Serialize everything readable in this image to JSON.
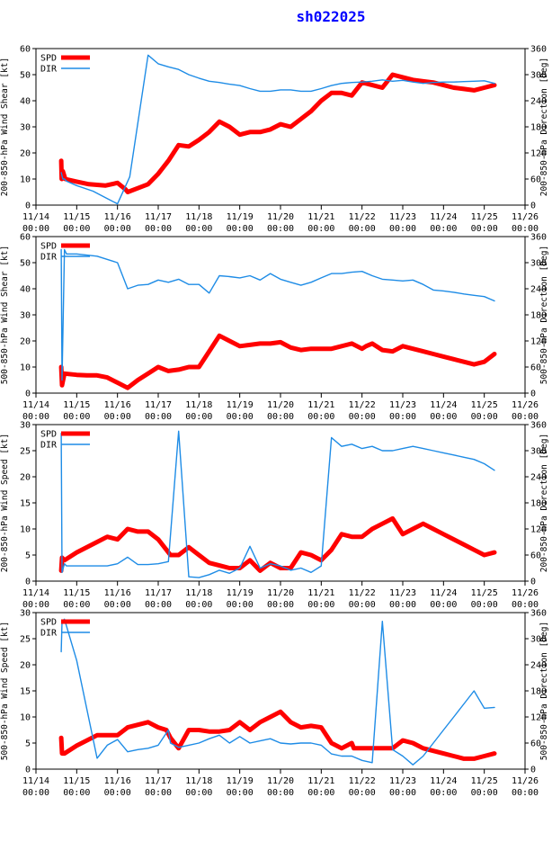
{
  "page": {
    "title": "sh022025"
  },
  "colors": {
    "spd": "#ff0000",
    "dir": "#1e8ce6",
    "axis": "#000000",
    "title": "#0000ff"
  },
  "chart_data": [
    {
      "type": "line",
      "ylabel": "200-850-hPa Wind Shear [kt]",
      "y2label": "200-850-hPa Direction [Deg]",
      "xlim": [
        0,
        12
      ],
      "ylim": [
        0,
        60
      ],
      "yticks": [
        0,
        10,
        20,
        30,
        40,
        50,
        60
      ],
      "y2lim": [
        0,
        360
      ],
      "y2ticks": [
        0,
        60,
        120,
        180,
        240,
        300,
        360
      ],
      "xtick_labels": [
        "11/14",
        "11/15",
        "11/16",
        "11/17",
        "11/18",
        "11/19",
        "11/20",
        "11/21",
        "11/22",
        "11/23",
        "11/24",
        "11/25",
        "11/26"
      ],
      "xtick_sublabel": "00:00",
      "legend": [
        "SPD",
        "DIR"
      ],
      "legend_position": "top-left",
      "series": [
        {
          "name": "SPD",
          "axis": "left",
          "x": [
            0.62,
            0.63,
            0.66,
            0.72,
            1.0,
            1.3,
            1.7,
            2.0,
            2.2,
            2.25,
            2.5,
            2.75,
            3.0,
            3.25,
            3.5,
            3.75,
            4.0,
            4.25,
            4.5,
            4.75,
            5.0,
            5.25,
            5.5,
            5.75,
            6.0,
            6.25,
            6.5,
            6.75,
            7.0,
            7.25,
            7.5,
            7.75,
            8.0,
            8.25,
            8.5,
            8.75,
            9.0,
            9.25,
            9.5,
            9.75,
            10.0,
            10.25,
            10.5,
            10.75,
            11.0,
            11.25
          ],
          "y": [
            17,
            10,
            13,
            10,
            9,
            8,
            7.5,
            8.5,
            6,
            5,
            6.5,
            8,
            12,
            17,
            23,
            22.5,
            25,
            28,
            32,
            30,
            27,
            28,
            28,
            29,
            31,
            30,
            33,
            36,
            40,
            43,
            43,
            42,
            47,
            46,
            45,
            50,
            49,
            48,
            47.5,
            47,
            46,
            45,
            44.5,
            44,
            45,
            46
          ]
        },
        {
          "name": "DIR",
          "axis": "right",
          "x": [
            0.62,
            0.66,
            0.7,
            0.75,
            1.0,
            1.4,
            1.75,
            2.0,
            2.3,
            2.75,
            3.0,
            3.25,
            3.5,
            3.75,
            4.0,
            4.25,
            4.5,
            4.75,
            5.0,
            5.25,
            5.5,
            5.75,
            6.0,
            6.25,
            6.5,
            6.75,
            7.0,
            7.25,
            7.5,
            7.75,
            8.0,
            8.25,
            8.5,
            8.75,
            9.0,
            9.25,
            9.5,
            9.75,
            10.0,
            10.25,
            10.5,
            10.75,
            11.0,
            11.25
          ],
          "y": [
            75,
            60,
            60,
            55,
            45,
            32,
            15,
            3,
            65,
            345,
            325,
            318,
            312,
            300,
            292,
            285,
            282,
            278,
            275,
            268,
            262,
            262,
            265,
            265,
            262,
            262,
            268,
            275,
            280,
            282,
            283,
            285,
            288,
            285,
            287,
            283,
            280,
            282,
            283,
            283,
            284,
            285,
            286,
            280
          ]
        }
      ]
    },
    {
      "type": "line",
      "ylabel": "500-850-hPa Wind Shear [kt]",
      "y2label": "500-850-hPa Direction [Deg]",
      "xlim": [
        0,
        12
      ],
      "ylim": [
        0,
        60
      ],
      "yticks": [
        0,
        10,
        20,
        30,
        40,
        50,
        60
      ],
      "y2lim": [
        0,
        360
      ],
      "y2ticks": [
        0,
        60,
        120,
        180,
        240,
        300,
        360
      ],
      "xtick_labels": [
        "11/14",
        "11/15",
        "11/16",
        "11/17",
        "11/18",
        "11/19",
        "11/20",
        "11/21",
        "11/22",
        "11/23",
        "11/24",
        "11/25",
        "11/26"
      ],
      "xtick_sublabel": "00:00",
      "legend": [
        "SPD",
        "DIR"
      ],
      "legend_position": "top-left",
      "series": [
        {
          "name": "SPD",
          "axis": "left",
          "x": [
            0.62,
            0.64,
            0.7,
            1.0,
            1.25,
            1.5,
            1.75,
            2.0,
            2.25,
            2.5,
            2.75,
            3.0,
            3.25,
            3.5,
            3.75,
            4.0,
            4.25,
            4.5,
            4.75,
            5.0,
            5.25,
            5.5,
            5.75,
            6.0,
            6.25,
            6.5,
            6.75,
            7.0,
            7.25,
            7.5,
            7.75,
            8.0,
            8.1,
            8.25,
            8.5,
            8.75,
            9.0,
            9.25,
            9.5,
            9.75,
            10.0,
            10.25,
            10.5,
            10.75,
            11.0,
            11.25
          ],
          "y": [
            10,
            3,
            7.5,
            7,
            6.8,
            6.8,
            6,
            4,
            2,
            5,
            7.5,
            10,
            8.5,
            9,
            10,
            10,
            16,
            22,
            20,
            18,
            18.5,
            19,
            19,
            19.5,
            17.5,
            16.5,
            17,
            17,
            17,
            18,
            19,
            17,
            18,
            19,
            16.5,
            16,
            18,
            17,
            16,
            15,
            14,
            13,
            12,
            11,
            12,
            15
          ]
        },
        {
          "name": "DIR",
          "axis": "right",
          "x": [
            0.62,
            0.64,
            0.7,
            0.75,
            1.0,
            1.5,
            2.0,
            2.25,
            2.5,
            2.75,
            3.0,
            3.25,
            3.5,
            3.75,
            4.0,
            4.25,
            4.5,
            4.75,
            5.0,
            5.25,
            5.5,
            5.75,
            6.0,
            6.25,
            6.5,
            6.75,
            7.0,
            7.25,
            7.5,
            7.75,
            8.0,
            8.25,
            8.5,
            8.75,
            9.0,
            9.25,
            9.5,
            9.75,
            10.0,
            10.25,
            10.5,
            10.75,
            11.0,
            11.25
          ],
          "y": [
            330,
            30,
            330,
            320,
            320,
            315,
            300,
            240,
            248,
            250,
            260,
            255,
            262,
            250,
            250,
            230,
            270,
            268,
            265,
            270,
            260,
            275,
            262,
            255,
            248,
            255,
            265,
            275,
            275,
            278,
            280,
            270,
            262,
            260,
            258,
            260,
            250,
            237,
            235,
            232,
            228,
            225,
            222,
            212
          ]
        }
      ]
    },
    {
      "type": "line",
      "ylabel": "200-850-hPa Wind Speed [kt]",
      "y2label": "200-850-hPa Direction [Deg]",
      "xlim": [
        0,
        12
      ],
      "ylim": [
        0,
        30
      ],
      "yticks": [
        0,
        5,
        10,
        15,
        20,
        25,
        30
      ],
      "y2lim": [
        0,
        360
      ],
      "y2ticks": [
        0,
        60,
        120,
        180,
        240,
        300,
        360
      ],
      "xtick_labels": [
        "11/14",
        "11/15",
        "11/16",
        "11/17",
        "11/18",
        "11/19",
        "11/20",
        "11/21",
        "11/22",
        "11/23",
        "11/24",
        "11/25",
        "11/26"
      ],
      "xtick_sublabel": "00:00",
      "legend": [
        "SPD",
        "DIR"
      ],
      "legend_position": "top-left",
      "series": [
        {
          "name": "SPD",
          "axis": "left",
          "x": [
            0.62,
            0.64,
            0.7,
            1.0,
            1.5,
            1.75,
            2.0,
            2.25,
            2.5,
            2.75,
            3.0,
            3.2,
            3.3,
            3.5,
            3.75,
            4.0,
            4.25,
            4.5,
            4.75,
            5.0,
            5.25,
            5.5,
            5.75,
            6.0,
            6.25,
            6.5,
            6.75,
            7.0,
            7.25,
            7.5,
            7.75,
            8.0,
            8.25,
            8.5,
            8.75,
            9.0,
            9.25,
            9.5,
            9.75,
            10.0,
            10.25,
            10.5,
            10.75,
            11.0,
            11.25
          ],
          "y": [
            2,
            4.5,
            4,
            5.5,
            7.5,
            8.5,
            8,
            10,
            9.5,
            9.5,
            8,
            6,
            5,
            5,
            6.5,
            5,
            3.5,
            3,
            2.5,
            2.5,
            4,
            2,
            3.5,
            2.5,
            2.5,
            5.5,
            5,
            4,
            6,
            9,
            8.5,
            8.5,
            10,
            11,
            12,
            9,
            10,
            11,
            10,
            9,
            8,
            7,
            6,
            5,
            5.5
          ]
        },
        {
          "name": "DIR",
          "axis": "right",
          "x": [
            0.62,
            0.64,
            0.7,
            0.75,
            1.0,
            1.25,
            1.5,
            1.75,
            2.0,
            2.25,
            2.5,
            2.75,
            3.0,
            3.25,
            3.5,
            3.75,
            4.0,
            4.25,
            4.5,
            4.75,
            5.0,
            5.25,
            5.5,
            5.75,
            6.0,
            6.25,
            6.5,
            6.75,
            7.0,
            7.25,
            7.5,
            7.75,
            8.0,
            8.25,
            8.5,
            8.75,
            9.0,
            9.25,
            9.5,
            9.75,
            10.0,
            10.25,
            10.5,
            10.75,
            11.0,
            11.25
          ],
          "y": [
            340,
            20,
            40,
            35,
            35,
            35,
            35,
            35,
            40,
            55,
            38,
            38,
            40,
            45,
            345,
            10,
            8,
            15,
            25,
            18,
            30,
            80,
            30,
            40,
            35,
            25,
            30,
            20,
            35,
            330,
            310,
            315,
            305,
            310,
            300,
            300,
            305,
            310,
            305,
            300,
            295,
            290,
            285,
            280,
            270,
            255
          ]
        }
      ]
    },
    {
      "type": "line",
      "ylabel": "500-850-hPa Wind Speed [kt]",
      "y2label": "500-850-hPa Direction [Deg]",
      "xlim": [
        0,
        12
      ],
      "ylim": [
        0,
        30
      ],
      "yticks": [
        0,
        5,
        10,
        15,
        20,
        25,
        30
      ],
      "y2lim": [
        0,
        360
      ],
      "y2ticks": [
        0,
        60,
        120,
        180,
        240,
        300,
        360
      ],
      "xtick_labels": [
        "11/14",
        "11/15",
        "11/16",
        "11/17",
        "11/18",
        "11/19",
        "11/20",
        "11/21",
        "11/22",
        "11/23",
        "11/24",
        "11/25",
        "11/26"
      ],
      "xtick_sublabel": "00:00",
      "legend": [
        "SPD",
        "DIR"
      ],
      "legend_position": "top-left",
      "series": [
        {
          "name": "SPD",
          "axis": "left",
          "x": [
            0.62,
            0.64,
            0.7,
            1.0,
            1.5,
            2.0,
            2.25,
            2.5,
            2.75,
            3.0,
            3.2,
            3.3,
            3.5,
            3.75,
            4.0,
            4.25,
            4.5,
            4.75,
            5.0,
            5.25,
            5.5,
            5.75,
            6.0,
            6.25,
            6.5,
            6.75,
            7.0,
            7.25,
            7.5,
            7.75,
            7.8,
            8.0,
            8.25,
            8.5,
            8.75,
            9.0,
            9.25,
            9.5,
            9.75,
            10.0,
            10.25,
            10.5,
            10.75,
            11.0,
            11.25
          ],
          "y": [
            6,
            3,
            3,
            4.5,
            6.5,
            6.5,
            8,
            8.5,
            9,
            8,
            7.5,
            6,
            4,
            7.5,
            7.5,
            7.2,
            7.2,
            7.5,
            9,
            7.5,
            9,
            10,
            11,
            9,
            8,
            8.3,
            8,
            5,
            4,
            5,
            4,
            4,
            4,
            4,
            4,
            5.5,
            5,
            4,
            3.5,
            3,
            2.5,
            2,
            2,
            2.5,
            3
          ]
        },
        {
          "name": "DIR",
          "axis": "right",
          "x": [
            0.62,
            0.64,
            0.7,
            1.0,
            1.5,
            1.75,
            2.0,
            2.25,
            2.5,
            2.75,
            3.0,
            3.25,
            3.3,
            3.5,
            3.75,
            4.0,
            4.25,
            4.5,
            4.75,
            5.0,
            5.25,
            5.5,
            5.75,
            6.0,
            6.25,
            6.5,
            6.75,
            7.0,
            7.25,
            7.5,
            7.75,
            8.0,
            8.25,
            8.5,
            8.75,
            9.0,
            9.25,
            9.5,
            9.75,
            10.0,
            10.25,
            10.5,
            10.75,
            11.0,
            11.25
          ],
          "y": [
            270,
            340,
            345,
            250,
            25,
            55,
            68,
            40,
            45,
            48,
            55,
            90,
            60,
            50,
            55,
            60,
            70,
            78,
            60,
            75,
            60,
            65,
            70,
            60,
            58,
            60,
            60,
            55,
            35,
            30,
            30,
            20,
            15,
            340,
            45,
            30,
            10,
            30,
            60,
            90,
            120,
            150,
            180,
            140,
            142
          ]
        }
      ]
    }
  ]
}
